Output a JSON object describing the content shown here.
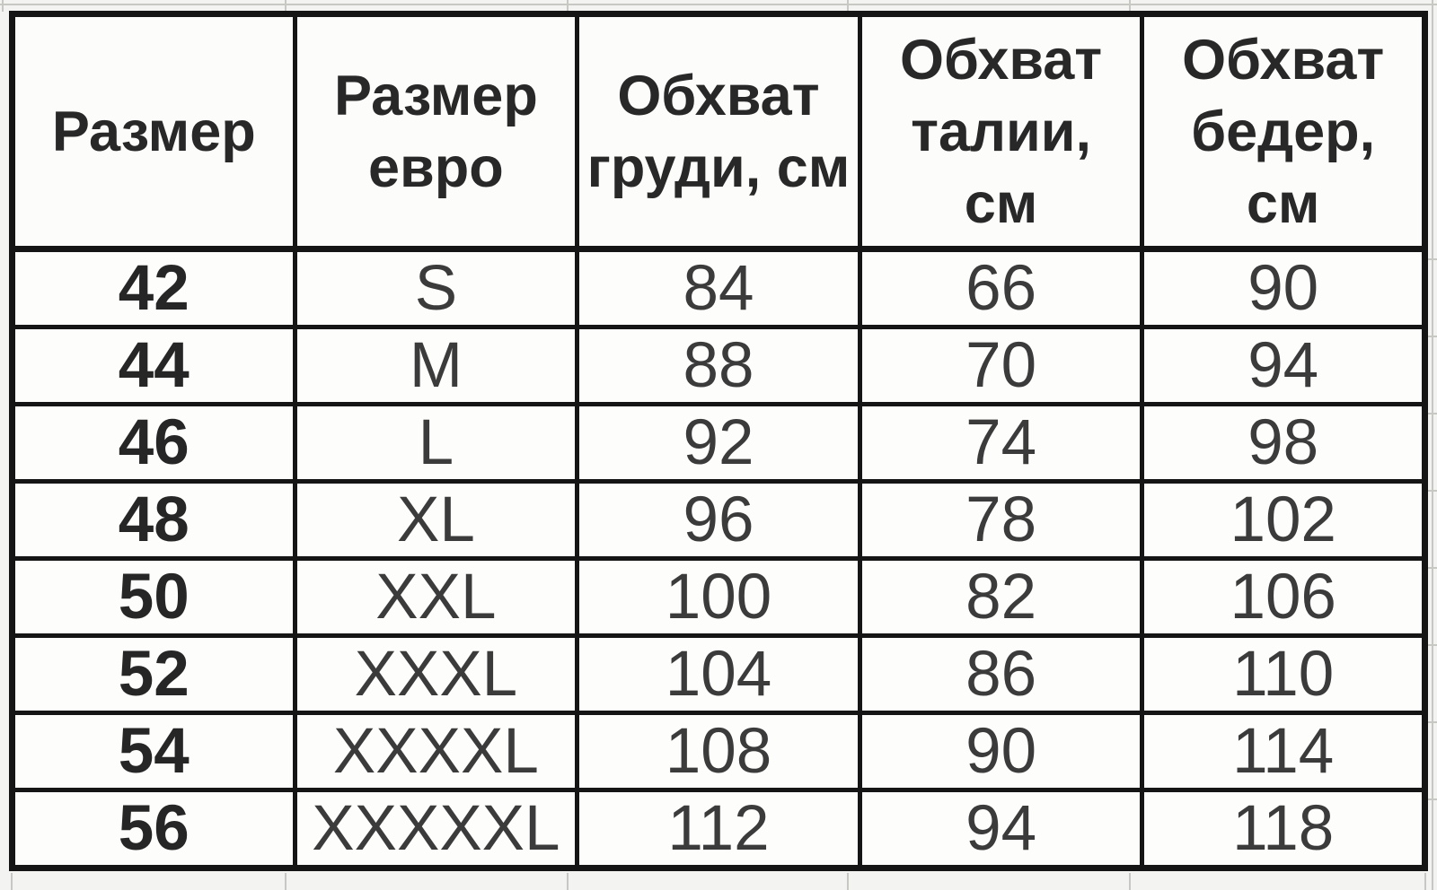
{
  "table": {
    "columns": [
      {
        "label": "Размер"
      },
      {
        "label": "Размер евро"
      },
      {
        "label": "Обхват груди, см"
      },
      {
        "label": "Обхват талии, см"
      },
      {
        "label": "Обхват бедер, см"
      }
    ],
    "rows": [
      [
        "42",
        "S",
        "84",
        "66",
        "90"
      ],
      [
        "44",
        "M",
        "88",
        "70",
        "94"
      ],
      [
        "46",
        "L",
        "92",
        "74",
        "98"
      ],
      [
        "48",
        "XL",
        "96",
        "78",
        "102"
      ],
      [
        "50",
        "XXL",
        "100",
        "82",
        "106"
      ],
      [
        "52",
        "XXXL",
        "104",
        "86",
        "110"
      ],
      [
        "54",
        "XXXXL",
        "108",
        "90",
        "114"
      ],
      [
        "56",
        "XXXXXL",
        "112",
        "94",
        "118"
      ]
    ]
  },
  "chart_data": {
    "type": "table",
    "columns": [
      "Размер",
      "Размер евро",
      "Обхват груди, см",
      "Обхват талии, см",
      "Обхват бедер, см"
    ],
    "rows": [
      [
        42,
        "S",
        84,
        66,
        90
      ],
      [
        44,
        "M",
        88,
        70,
        94
      ],
      [
        46,
        "L",
        92,
        74,
        98
      ],
      [
        48,
        "XL",
        96,
        78,
        102
      ],
      [
        50,
        "XXL",
        100,
        82,
        106
      ],
      [
        52,
        "XXXL",
        104,
        86,
        110
      ],
      [
        54,
        "XXXXL",
        108,
        90,
        114
      ],
      [
        56,
        "XXXXXL",
        112,
        94,
        118
      ]
    ]
  },
  "colors": {
    "table_border": "#151515",
    "cell_background": "#fdfdfb",
    "page_background": "#f3f3f1",
    "gridline": "#c7c7c4",
    "text": "#2b2b2b"
  }
}
